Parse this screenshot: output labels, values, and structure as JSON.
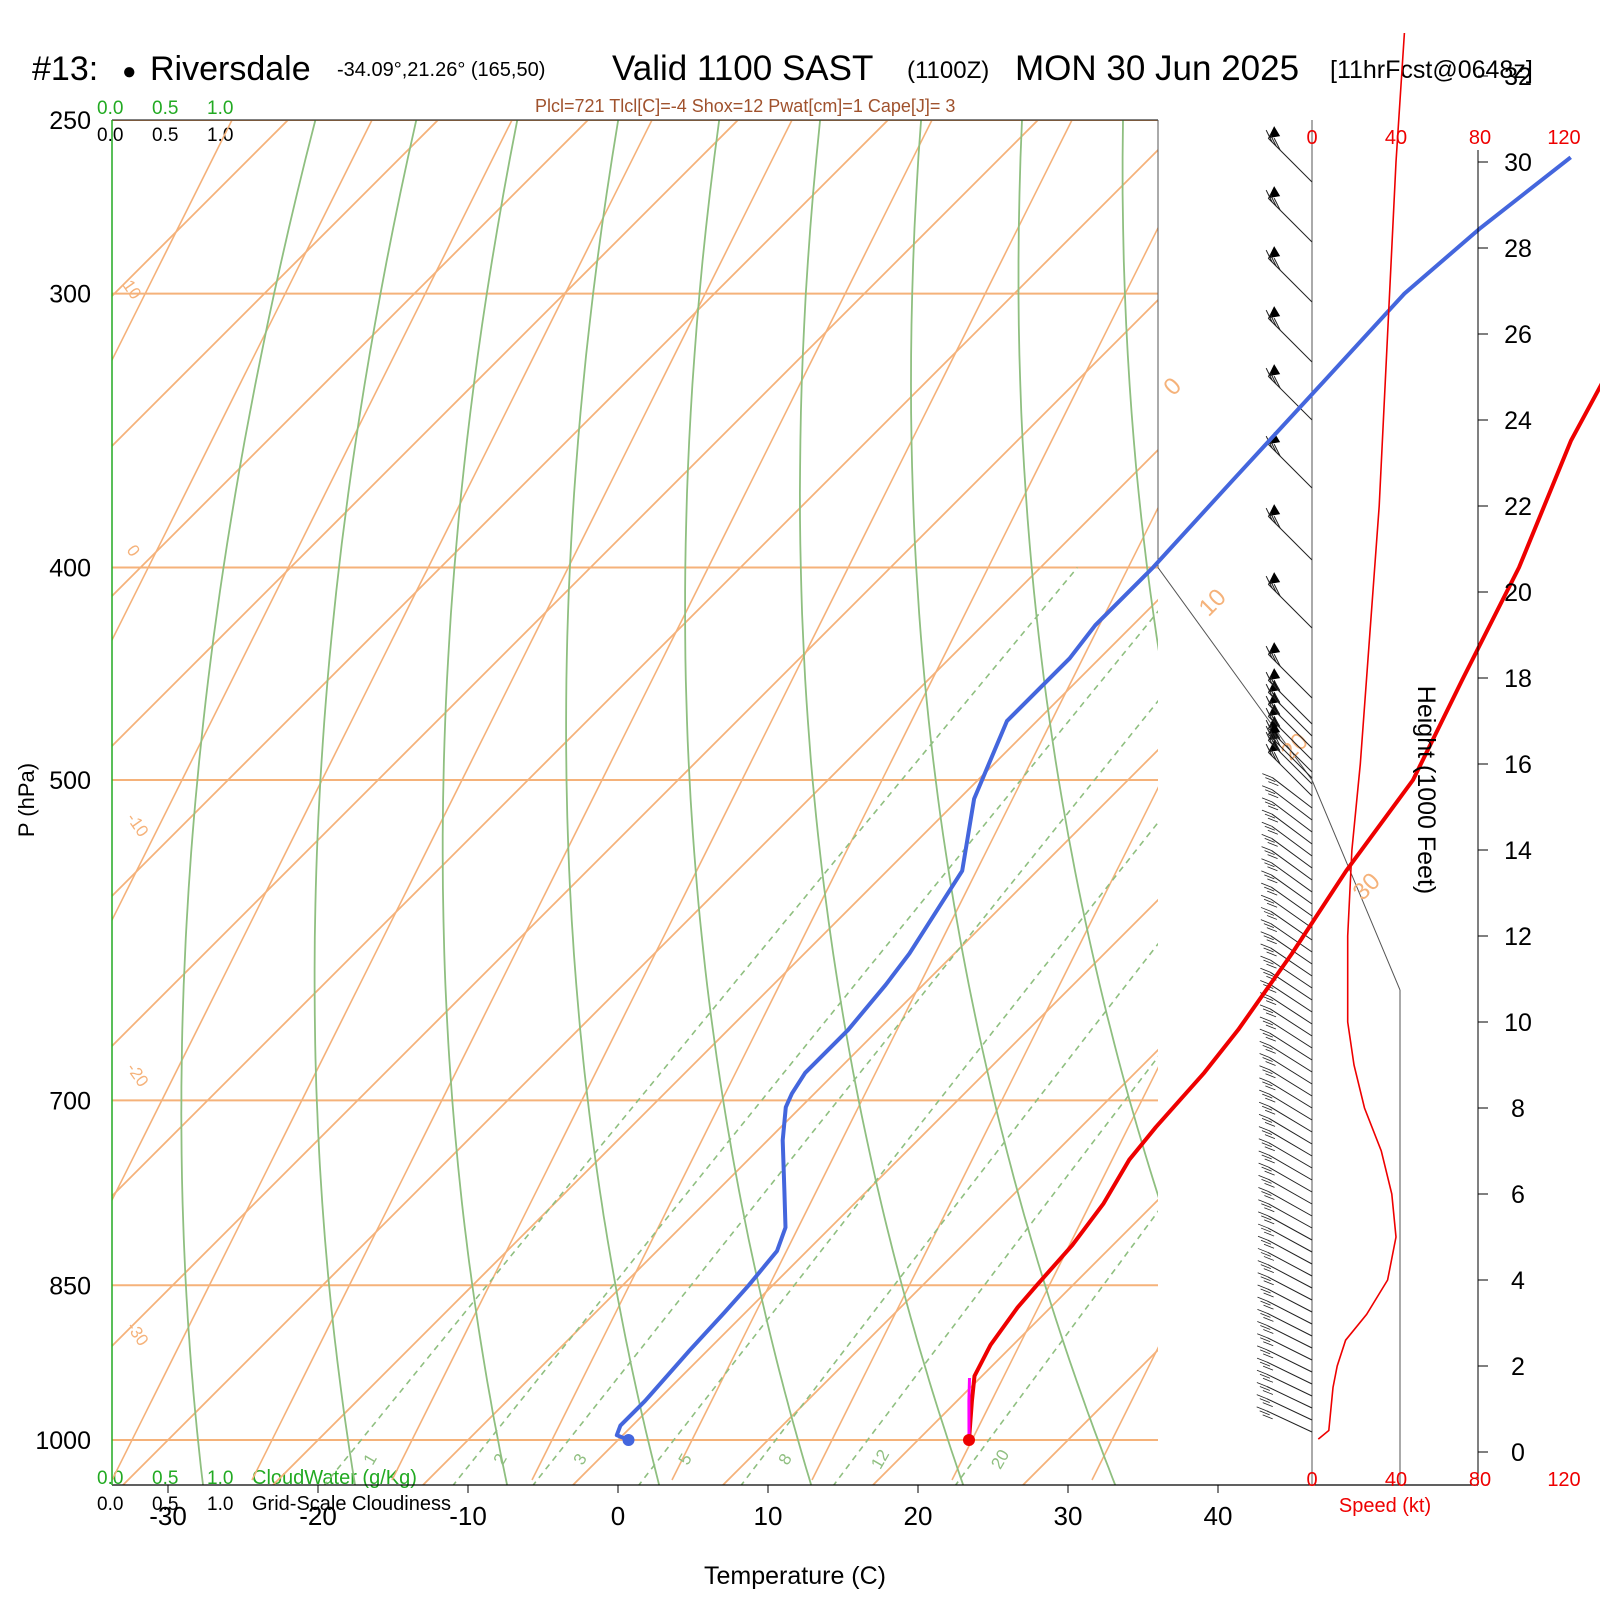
{
  "header": {
    "station_num": "#13:",
    "station_dot": "●",
    "station_name": "Riversdale",
    "coords": "-34.09°,21.26° (165,50)",
    "valid": "Valid 1100 SAST",
    "valid_z": "(1100Z)",
    "date": "MON 30 Jun 2025",
    "fcst": "[11hrFcst@0648z]",
    "indices": "Plcl=721 Tlcl[C]=-4 Shox=12 Pwat[cm]=1 Cape[J]= 3"
  },
  "colors": {
    "isotherm": "#f5b27a",
    "dry_adiabat": "#8fbf80",
    "mixing_ratio": "#8fbf80",
    "temperature": "#ee0000",
    "dewpoint": "#4466dd",
    "parcel": "#ff00ff",
    "speed": "#ee0000",
    "green_text": "#22aa22",
    "indices_text": "#a0522d"
  },
  "chart_data": {
    "type": "line",
    "xlabel": "Temperature (C)",
    "ylabel": "P (hPa)",
    "xlim": [
      -30,
      40
    ],
    "ylim": [
      1000,
      250
    ],
    "x_ticks": [
      "-30",
      "-20",
      "-10",
      "0",
      "10",
      "20",
      "30",
      "40"
    ],
    "y_ticks": [
      "250",
      "300",
      "400",
      "500",
      "700",
      "850",
      "1000"
    ],
    "cloud_scales": {
      "water_label": "CloudWater (g/Kg)",
      "water_ticks": [
        "0.0",
        "0.5",
        "1.0"
      ],
      "cloud_label": "Grid-Scale Cloudiness",
      "cloud_ticks": [
        "0.0",
        "0.5",
        "1.0"
      ]
    },
    "skewed_isotherm_labels": [
      "0",
      "10",
      "20",
      "30"
    ],
    "left_temp_labels": [
      "10",
      "0",
      "-10",
      "-20",
      "-30"
    ],
    "mixing_ratio_labels": [
      "1",
      "2",
      "3",
      "5",
      "8",
      "12",
      "20"
    ],
    "series": [
      {
        "name": "Temperature",
        "points": [
          [
            23.4,
            1000
          ],
          [
            21.0,
            960
          ],
          [
            19.5,
            935
          ],
          [
            18.5,
            905
          ],
          [
            17.8,
            870
          ],
          [
            17.6,
            850
          ],
          [
            17.3,
            815
          ],
          [
            16.6,
            780
          ],
          [
            15.4,
            745
          ],
          [
            15.0,
            720
          ],
          [
            14.8,
            700
          ],
          [
            14.6,
            680
          ],
          [
            14.0,
            650
          ],
          [
            12.5,
            600
          ],
          [
            10.6,
            550
          ],
          [
            9.0,
            500
          ],
          [
            5.6,
            450
          ],
          [
            1.9,
            400
          ],
          [
            -3.1,
            350
          ],
          [
            -7.6,
            300
          ],
          [
            -13.0,
            260
          ]
        ]
      },
      {
        "name": "Dewpoint",
        "points": [
          [
            0.7,
            1000
          ],
          [
            -0.4,
            995
          ],
          [
            -0.8,
            985
          ],
          [
            -0.8,
            960
          ],
          [
            -1.2,
            910
          ],
          [
            -1.4,
            875
          ],
          [
            -1.6,
            850
          ],
          [
            -2.0,
            820
          ],
          [
            -3.0,
            800
          ],
          [
            -5.5,
            770
          ],
          [
            -9.0,
            730
          ],
          [
            -11.0,
            705
          ],
          [
            -11.5,
            695
          ],
          [
            -12.0,
            680
          ],
          [
            -12.0,
            650
          ],
          [
            -12.5,
            620
          ],
          [
            -13.0,
            600
          ],
          [
            -15.0,
            550
          ],
          [
            -19.0,
            510
          ],
          [
            -22.0,
            470
          ],
          [
            -22.0,
            440
          ],
          [
            -22.5,
            425
          ],
          [
            -22.5,
            400
          ],
          [
            -23.0,
            365
          ],
          [
            -23.5,
            330
          ],
          [
            -24.0,
            300
          ],
          [
            -23.3,
            280
          ],
          [
            -22.0,
            260
          ]
        ]
      },
      {
        "name": "Parcel",
        "points": [
          [
            23.4,
            1000
          ],
          [
            20.8,
            960
          ],
          [
            19.3,
            937
          ]
        ]
      }
    ],
    "height_axis": {
      "label": "Height (1000 Feet)",
      "ticks": [
        "0",
        "2",
        "4",
        "6",
        "8",
        "10",
        "12",
        "14",
        "16",
        "18",
        "20",
        "22",
        "24",
        "26",
        "28",
        "30",
        "32"
      ]
    },
    "speed_axis": {
      "label": "Speed (kt)",
      "ticks": [
        "0",
        "40",
        "80",
        "120"
      ],
      "profile_height_speed": [
        [
          0.3,
          3
        ],
        [
          0.5,
          8
        ],
        [
          1.5,
          10
        ],
        [
          2.0,
          12
        ],
        [
          2.6,
          16
        ],
        [
          3.2,
          26
        ],
        [
          4.0,
          36
        ],
        [
          5.0,
          40
        ],
        [
          6.0,
          38
        ],
        [
          7.0,
          33
        ],
        [
          8.0,
          25
        ],
        [
          9.0,
          20
        ],
        [
          10.0,
          17
        ],
        [
          11.0,
          17
        ],
        [
          12.0,
          17
        ],
        [
          13.0,
          18
        ],
        [
          14.0,
          19
        ],
        [
          16.0,
          23
        ],
        [
          18.0,
          26
        ],
        [
          20.0,
          29
        ],
        [
          22.0,
          32
        ],
        [
          24.0,
          34
        ],
        [
          26.0,
          36
        ],
        [
          28.0,
          38
        ],
        [
          30.0,
          40
        ],
        [
          33.0,
          44
        ]
      ]
    }
  }
}
